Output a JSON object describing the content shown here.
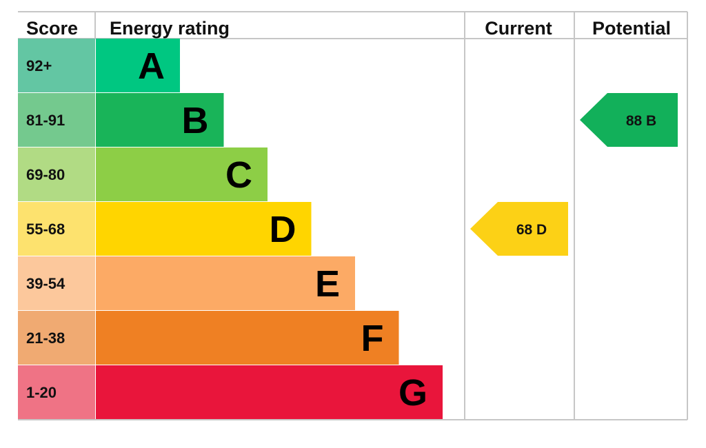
{
  "chart_data": {
    "type": "table",
    "headers": {
      "score": "Score",
      "energy_rating": "Energy rating",
      "current": "Current",
      "potential": "Potential"
    },
    "bands": [
      {
        "letter": "A",
        "range": "92+",
        "color": "#00c781",
        "score_bg": "#63c6a3"
      },
      {
        "letter": "B",
        "range": "81-91",
        "color": "#19b459",
        "score_bg": "#74c98e"
      },
      {
        "letter": "C",
        "range": "69-80",
        "color": "#8dce46",
        "score_bg": "#b1db84"
      },
      {
        "letter": "D",
        "range": "55-68",
        "color": "#ffd500",
        "score_bg": "#fde26e"
      },
      {
        "letter": "E",
        "range": "39-54",
        "color": "#fcaa65",
        "score_bg": "#fcc89c"
      },
      {
        "letter": "F",
        "range": "21-38",
        "color": "#ef8023",
        "score_bg": "#f0aa72"
      },
      {
        "letter": "G",
        "range": "1-20",
        "color": "#e9153b",
        "score_bg": "#ef7385"
      }
    ],
    "current": {
      "score": 68,
      "band": "D",
      "label": "68  D",
      "color": "#fcd116"
    },
    "potential": {
      "score": 88,
      "band": "B",
      "label": "88  B",
      "color": "#12b05a"
    }
  }
}
